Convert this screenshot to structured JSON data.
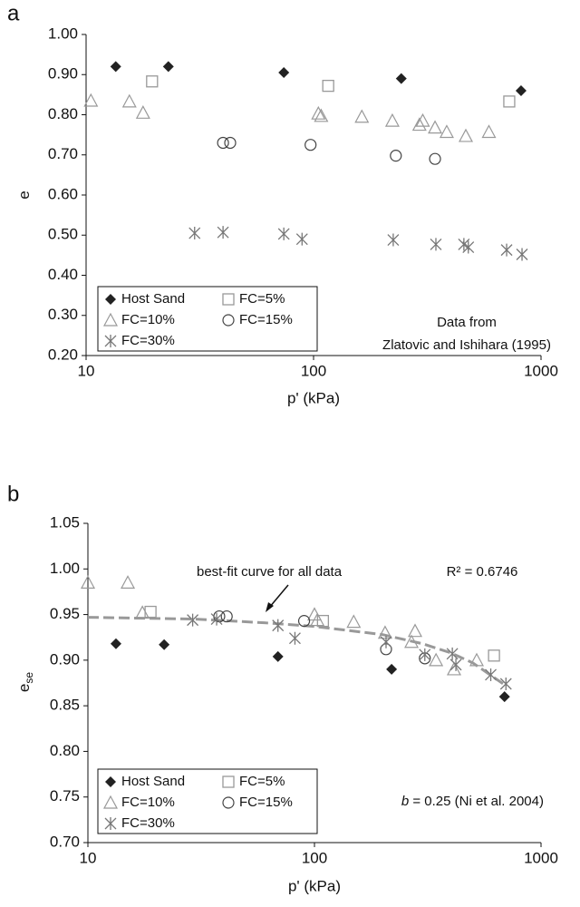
{
  "chart_data": [
    {
      "type": "scatter",
      "panel": "a",
      "xlabel": "p' (kPa)",
      "ylabel": "e",
      "xscale": "log",
      "xlim": [
        10,
        1000
      ],
      "xticks": [
        10,
        100,
        1000
      ],
      "ylim": [
        0.2,
        1.0
      ],
      "yticks": [
        {
          "value": 0.2,
          "label": "0.20"
        },
        {
          "value": 0.3,
          "label": "0.30"
        },
        {
          "value": 0.4,
          "label": "0.40"
        },
        {
          "value": 0.5,
          "label": "0.50"
        },
        {
          "value": 0.6,
          "label": "0.60"
        },
        {
          "value": 0.7,
          "label": "0.70"
        },
        {
          "value": 0.8,
          "label": "0.80"
        },
        {
          "value": 0.9,
          "label": "0.90"
        },
        {
          "value": 1.0,
          "label": "1.00"
        }
      ],
      "grid": false,
      "legend": "lower left",
      "annotations": [
        "Data from",
        "Zlatovic and Ishihara (1995)"
      ],
      "series": [
        {
          "name": "Host Sand",
          "marker": "diamond",
          "color": "#222222",
          "x": [
            13.5,
            23,
            74,
            243,
            817
          ],
          "values": [
            0.92,
            0.92,
            0.905,
            0.89,
            0.86
          ]
        },
        {
          "name": "FC=5%",
          "marker": "square",
          "color": "#999999",
          "x": [
            19.5,
            116,
            725
          ],
          "values": [
            0.883,
            0.872,
            0.833
          ]
        },
        {
          "name": "FC=10%",
          "marker": "triangle",
          "color": "#999999",
          "x": [
            10.5,
            15.5,
            17.8,
            105,
            108,
            163,
            222,
            292,
            302,
            342,
            385,
            467,
            590
          ],
          "values": [
            0.835,
            0.833,
            0.805,
            0.803,
            0.797,
            0.795,
            0.785,
            0.775,
            0.785,
            0.768,
            0.757,
            0.747,
            0.757
          ]
        },
        {
          "name": "FC=15%",
          "marker": "circle",
          "color": "#444444",
          "x": [
            40,
            43,
            97,
            230,
            342
          ],
          "values": [
            0.73,
            0.73,
            0.725,
            0.698,
            0.69
          ]
        },
        {
          "name": "FC=30%",
          "marker": "star",
          "color": "#777777",
          "x": [
            30,
            40,
            74,
            89,
            224,
            345,
            458,
            479,
            706,
            825
          ],
          "values": [
            0.505,
            0.507,
            0.503,
            0.49,
            0.488,
            0.477,
            0.477,
            0.47,
            0.463,
            0.452
          ]
        }
      ]
    },
    {
      "type": "scatter",
      "panel": "b",
      "xlabel": "p' (kPa)",
      "ylabel": "e",
      "ylabel_sub": "se",
      "xscale": "log",
      "xlim": [
        10,
        1000
      ],
      "xticks": [
        10,
        100,
        1000
      ],
      "ylim": [
        0.7,
        1.05
      ],
      "yticks": [
        {
          "value": 0.7,
          "label": "0.70"
        },
        {
          "value": 0.75,
          "label": "0.75"
        },
        {
          "value": 0.8,
          "label": "0.80"
        },
        {
          "value": 0.85,
          "label": "0.85"
        },
        {
          "value": 0.9,
          "label": "0.90"
        },
        {
          "value": 0.95,
          "label": "0.95"
        },
        {
          "value": 1.0,
          "label": "1.00"
        },
        {
          "value": 1.05,
          "label": "1.05"
        }
      ],
      "grid": false,
      "legend": "lower left",
      "annotations": [
        "best-fit curve for all data",
        "R² = 0.6746",
        "b",
        " = 0.25 (Ni et al. 2004)"
      ],
      "fit": {
        "color": "#999999",
        "x": [
          10,
          30,
          60,
          100,
          200,
          300,
          400,
          500,
          700
        ],
        "values": [
          0.947,
          0.945,
          0.941,
          0.937,
          0.928,
          0.918,
          0.908,
          0.897,
          0.872
        ]
      },
      "series": [
        {
          "name": "Host Sand",
          "marker": "diamond",
          "color": "#222222",
          "x": [
            13.3,
            21.7,
            69,
            219,
            690
          ],
          "values": [
            0.918,
            0.917,
            0.904,
            0.89,
            0.86
          ]
        },
        {
          "name": "FC=5%",
          "marker": "square",
          "color": "#999999",
          "x": [
            18.9,
            109,
            620
          ],
          "values": [
            0.953,
            0.943,
            0.905
          ]
        },
        {
          "name": "FC=10%",
          "marker": "triangle",
          "color": "#999999",
          "x": [
            10,
            15,
            17.4,
            100,
            103,
            149,
            205,
            268,
            278,
            344,
            413,
            520
          ],
          "values": [
            0.985,
            0.985,
            0.952,
            0.95,
            0.944,
            0.942,
            0.93,
            0.92,
            0.932,
            0.9,
            0.89,
            0.9
          ]
        },
        {
          "name": "FC=15%",
          "marker": "circle",
          "color": "#444444",
          "x": [
            38,
            41,
            90,
            207,
            307
          ],
          "values": [
            0.948,
            0.948,
            0.943,
            0.912,
            0.902
          ]
        },
        {
          "name": "FC=30%",
          "marker": "star",
          "color": "#777777",
          "x": [
            29,
            37,
            69,
            82,
            207,
            307,
            406,
            421,
            600,
            700
          ],
          "values": [
            0.944,
            0.945,
            0.938,
            0.924,
            0.92,
            0.906,
            0.907,
            0.895,
            0.884,
            0.874
          ]
        }
      ]
    }
  ]
}
